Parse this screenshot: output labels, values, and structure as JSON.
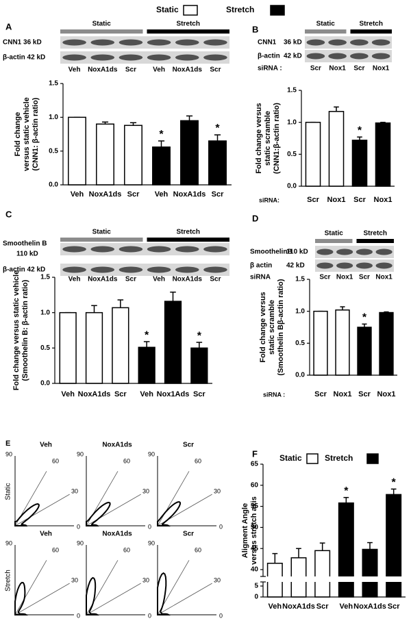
{
  "legend": {
    "items": [
      {
        "name": "Static",
        "color": "#ffffff"
      },
      {
        "name": "Stretch",
        "color": "#000000"
      }
    ]
  },
  "blots": [
    {
      "panel": "A",
      "groups": [
        "Static",
        "Stretch"
      ],
      "rows": [
        [
          "CNN1 36 kD"
        ],
        [
          "β-actin 42 kD"
        ]
      ],
      "lanes": [
        "Veh",
        "NoxA1ds",
        "Scr",
        "Veh",
        "NoxA1ds",
        "Scr"
      ]
    },
    {
      "panel": "B",
      "groups": [
        "Static",
        "Stretch"
      ],
      "rows": [
        [
          "CNN1",
          "36 kD"
        ],
        [
          "β-actin",
          "42 kD"
        ]
      ],
      "lane_title": "siRNA :",
      "lanes": [
        "Scr",
        "Nox1",
        "Scr",
        "Nox1"
      ]
    },
    {
      "panel": "C",
      "groups": [
        "Static",
        "Stretch"
      ],
      "rows": [
        [
          "Smoothelin B",
          "110 kD"
        ],
        [
          "β-actin 42 kD"
        ]
      ],
      "lanes": [
        "Veh",
        "NoxA1ds",
        "Scr",
        "Veh",
        "NoxA1ds",
        "Scr"
      ]
    },
    {
      "panel": "D",
      "groups": [
        "Static",
        "Stretch"
      ],
      "rows": [
        [
          "SmoothelinB",
          "110 kD"
        ],
        [
          "β actin",
          "42 kD"
        ]
      ],
      "lane_title": "siRNA",
      "lanes": [
        "Scr",
        "Nox1",
        "Scr",
        "Nox1"
      ]
    }
  ],
  "chart_data": [
    {
      "type": "bar",
      "ylabel": [
        "Fold change",
        "versus static vehicle",
        "(CNN1: β-actin ratio)"
      ],
      "categories": [
        "Veh",
        "NoxA1ds",
        "Scr",
        "Veh",
        "NoxA1ds",
        "Scr"
      ],
      "values": [
        1.0,
        0.9,
        0.88,
        0.56,
        0.95,
        0.65
      ],
      "errors": [
        0,
        0.03,
        0.04,
        0.09,
        0.07,
        0.09
      ],
      "colors": [
        "#ffffff",
        "#ffffff",
        "#ffffff",
        "#000000",
        "#000000",
        "#000000"
      ],
      "significance": [
        null,
        null,
        null,
        "*",
        null,
        "*"
      ],
      "ylim": [
        0,
        1.5
      ],
      "yticks": [
        {
          "value": 0,
          "label": "0.0"
        },
        {
          "value": 0.5,
          "label": "0.5"
        },
        {
          "value": 1,
          "label": "1.0"
        },
        {
          "value": 1.5,
          "label": "1.5"
        }
      ]
    },
    {
      "type": "bar",
      "ylabel": [
        "Fold change versus",
        "static scramble",
        "(CNN1:β-actin ratio)"
      ],
      "xprefix": "siRNA:",
      "categories": [
        "Scr",
        "Nox1",
        "Scr",
        "Nox1"
      ],
      "values": [
        1.0,
        1.17,
        0.72,
        0.99
      ],
      "errors": [
        0,
        0.07,
        0.05,
        0.01
      ],
      "colors": [
        "#ffffff",
        "#ffffff",
        "#000000",
        "#000000"
      ],
      "significance": [
        null,
        null,
        "*",
        null
      ],
      "ylim": [
        0,
        1.5
      ],
      "yticks": [
        {
          "value": 0,
          "label": "0.0"
        },
        {
          "value": 0.5,
          "label": "0.5"
        },
        {
          "value": 1,
          "label": "1.0"
        },
        {
          "value": 1.5,
          "label": "1.5"
        }
      ]
    },
    {
      "type": "bar",
      "ylabel": [
        "Fold change versus static vehicle",
        "(Smoothelin B: β-actin ratio)"
      ],
      "categories": [
        "Veh",
        "NoxA1ds",
        "Scr",
        "Veh",
        "Nox1Ads",
        "Scr"
      ],
      "values": [
        1.0,
        1.0,
        1.07,
        0.51,
        1.16,
        0.5
      ],
      "errors": [
        0,
        0.1,
        0.11,
        0.08,
        0.13,
        0.08
      ],
      "colors": [
        "#ffffff",
        "#ffffff",
        "#ffffff",
        "#000000",
        "#000000",
        "#000000"
      ],
      "significance": [
        null,
        null,
        null,
        "*",
        null,
        "*"
      ],
      "ylim": [
        0,
        1.5
      ],
      "yticks": [
        {
          "value": 0,
          "label": "0.0"
        },
        {
          "value": 0.5,
          "label": "0.5"
        },
        {
          "value": 1,
          "label": "1.0"
        },
        {
          "value": 1.5,
          "label": "1.5"
        }
      ]
    },
    {
      "type": "bar",
      "ylabel": [
        "Fold change versus",
        "static scramble",
        "(Smoothelin Bβ-actin ratio)"
      ],
      "xprefix": "siRNA :",
      "categories": [
        "Scr",
        "Nox1",
        "Scr",
        "Nox1"
      ],
      "values": [
        1.0,
        1.02,
        0.75,
        0.98
      ],
      "errors": [
        0,
        0.05,
        0.05,
        0.01
      ],
      "colors": [
        "#ffffff",
        "#ffffff",
        "#000000",
        "#000000"
      ],
      "significance": [
        null,
        null,
        "*",
        null
      ],
      "ylim": [
        0,
        1.5
      ],
      "yticks": [
        {
          "value": 0,
          "label": "0.0"
        },
        {
          "value": 0.5,
          "label": "0.5"
        },
        {
          "value": 1,
          "label": "1.0"
        },
        {
          "value": 1.5,
          "label": "1.5"
        }
      ]
    },
    {
      "type": "bar",
      "panel": "F",
      "ylabel": [
        "Aligment Angle",
        "versus stretch axis"
      ],
      "legend": [
        {
          "name": "Static",
          "color": "#ffffff"
        },
        {
          "name": "Stretch",
          "color": "#000000"
        }
      ],
      "categories": [
        "Veh",
        "NoxA1ds",
        "Scr",
        "Veh",
        "NoxA1ds",
        "Scr"
      ],
      "values": [
        41.5,
        42.8,
        44.5,
        55.8,
        44.8,
        57.8
      ],
      "errors": [
        2.3,
        2.2,
        1.8,
        1.3,
        1.6,
        1.3
      ],
      "colors": [
        "#ffffff",
        "#ffffff",
        "#ffffff",
        "#000000",
        "#000000",
        "#000000"
      ],
      "significance": [
        null,
        null,
        null,
        "*",
        null,
        "*"
      ],
      "ylim": [
        0,
        65
      ],
      "ybreak": [
        5,
        40
      ],
      "yticks": [
        0,
        5,
        40,
        45,
        50,
        55,
        60,
        65
      ]
    }
  ],
  "rose": {
    "panel": "E",
    "angles": [
      90,
      60,
      30,
      0
    ],
    "rows": [
      {
        "label": "Static",
        "plots": [
          "Veh",
          "NoxA1ds",
          "Scr"
        ]
      },
      {
        "label": "Stretch",
        "plots": [
          "Veh",
          "NoxA1ds",
          "Scr"
        ]
      }
    ]
  }
}
